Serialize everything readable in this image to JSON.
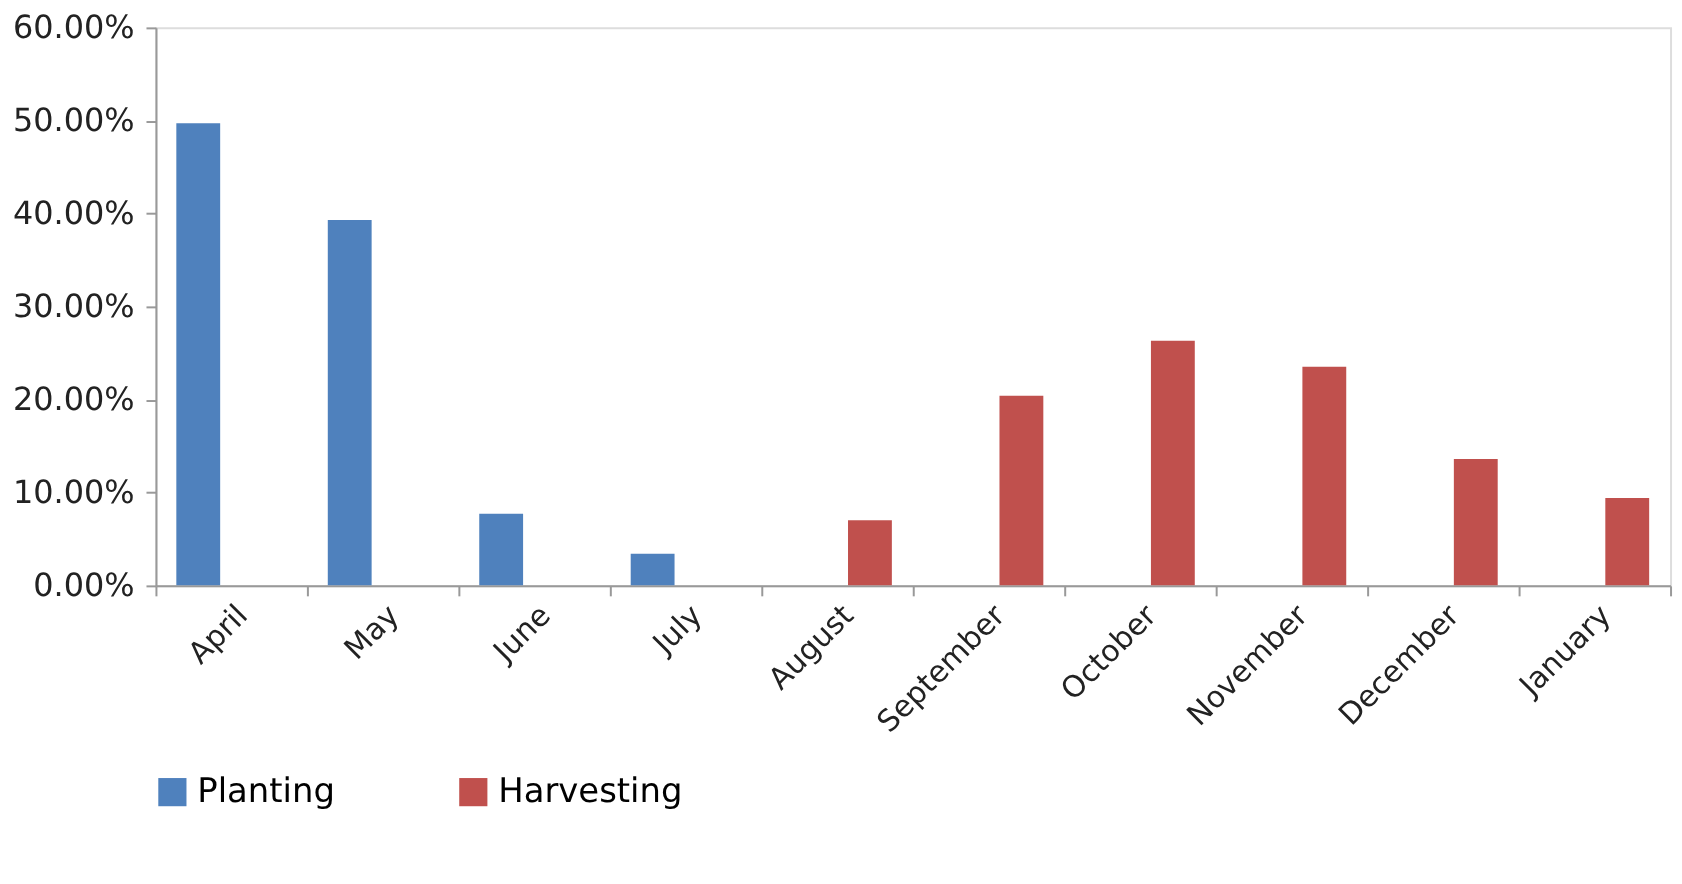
{
  "chart_data": {
    "type": "bar",
    "categories": [
      "April",
      "May",
      "June",
      "July",
      "August",
      "September",
      "October",
      "November",
      "December",
      "January"
    ],
    "series": [
      {
        "name": "Planting",
        "color": "#4f81bd",
        "values": [
          49.7,
          39.3,
          7.7,
          3.4,
          null,
          null,
          null,
          null,
          null,
          null
        ]
      },
      {
        "name": "Harvesting",
        "color": "#c0504d",
        "values": [
          null,
          null,
          null,
          null,
          7.0,
          20.4,
          26.3,
          23.5,
          13.6,
          9.4
        ]
      }
    ],
    "ylim": [
      0,
      60
    ],
    "yticks": [
      {
        "value": 0,
        "label": "0.00%"
      },
      {
        "value": 10,
        "label": "10.00%"
      },
      {
        "value": 20,
        "label": "20.00%"
      },
      {
        "value": 30,
        "label": "30.00%"
      },
      {
        "value": 40,
        "label": "40.00%"
      },
      {
        "value": 50,
        "label": "50.00%"
      },
      {
        "value": 60,
        "label": "60.00%"
      }
    ],
    "grid": false,
    "legend": "bottom"
  }
}
